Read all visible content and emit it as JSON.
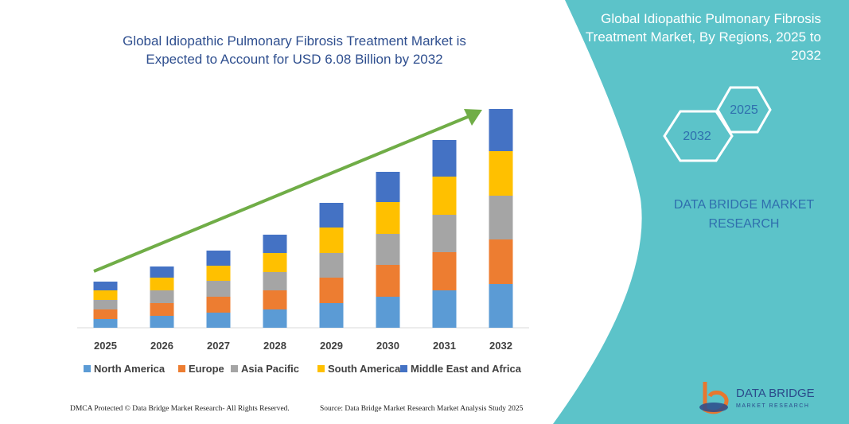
{
  "chart_data": {
    "type": "stacked_bar",
    "title": "Global Idiopathic Pulmonary Fibrosis Treatment Market  is Expected to Account for USD 6.08 Billion by 2032",
    "categories": [
      "2025",
      "2026",
      "2027",
      "2028",
      "2029",
      "2030",
      "2031",
      "2032"
    ],
    "series": [
      {
        "name": "North America",
        "color": "#5b9bd5",
        "values": [
          11,
          15,
          19,
          23,
          31,
          39,
          47,
          55
        ]
      },
      {
        "name": "Europe",
        "color": "#ed7d31",
        "values": [
          12,
          16,
          20,
          24,
          32,
          40,
          48,
          56
        ]
      },
      {
        "name": "Asia Pacific",
        "color": "#a5a5a5",
        "values": [
          12,
          16,
          20,
          23,
          31,
          39,
          47,
          55
        ]
      },
      {
        "name": "South America",
        "color": "#ffc000",
        "values": [
          12,
          16,
          19,
          24,
          32,
          40,
          48,
          56
        ]
      },
      {
        "name": "Middle East and Africa",
        "color": "#4472c4",
        "values": [
          11,
          14,
          19,
          23,
          31,
          38,
          46,
          53
        ]
      }
    ],
    "ylim": [
      0,
      275
    ],
    "trend_arrow": true,
    "arrow_color": "#70ad47"
  },
  "panel": {
    "title": "Global Idiopathic Pulmonary Fibrosis Treatment Market, By Regions, 2025 to 2032",
    "hex_left": "2032",
    "hex_right": "2025",
    "brand": "DATA BRIDGE MARKET RESEARCH"
  },
  "logo": {
    "name": "DATA BRIDGE",
    "sub": "MARKET RESEARCH"
  },
  "footer": {
    "left": "DMCA Protected © Data Bridge Market Research-  All Rights Reserved.",
    "right": "Source: Data Bridge Market Research  Market Analysis Study 2025"
  }
}
